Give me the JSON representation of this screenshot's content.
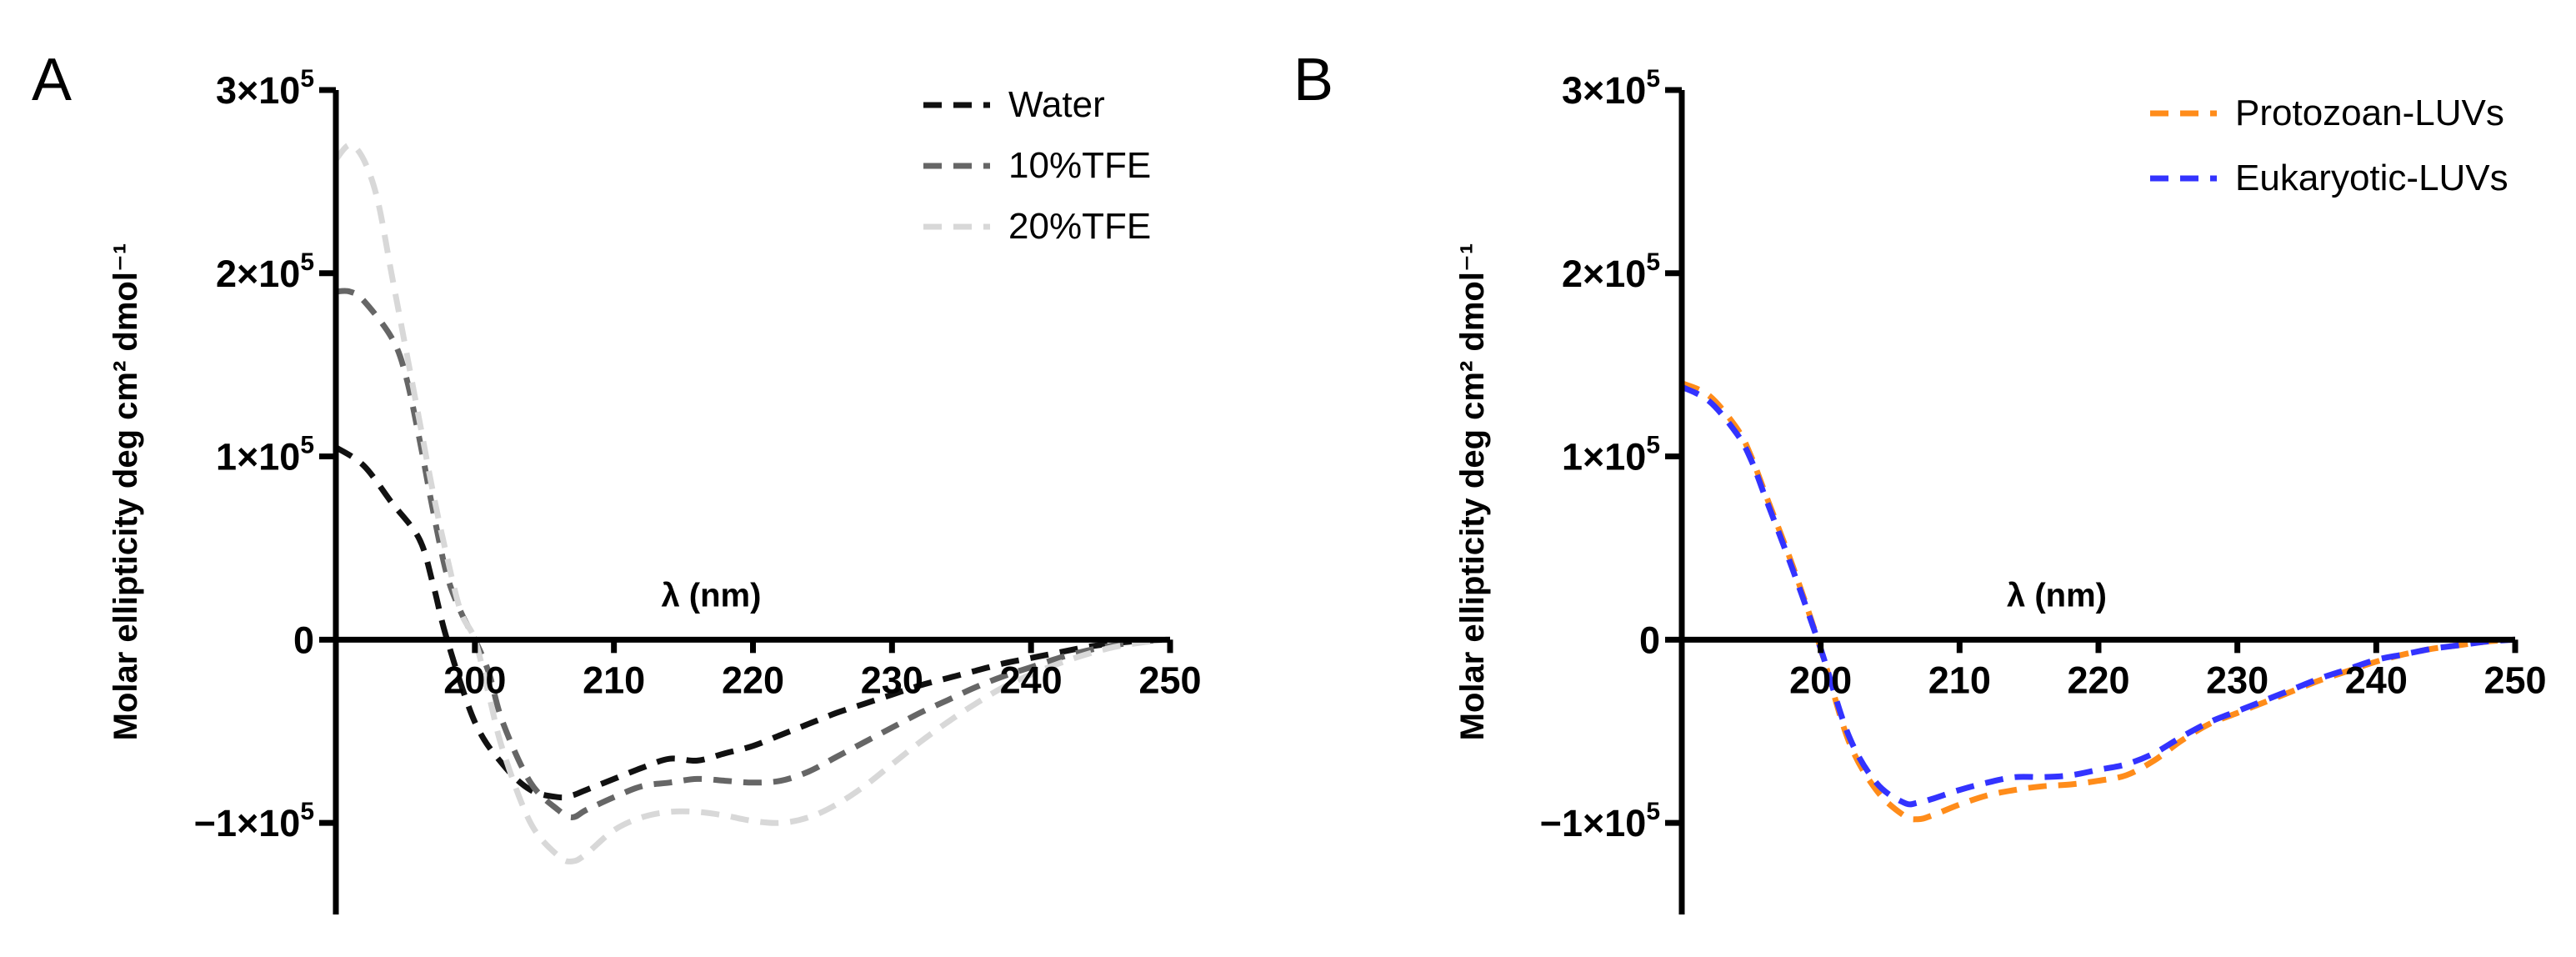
{
  "chart_data": [
    {
      "type": "line",
      "panel_label": "A",
      "title": "",
      "xlabel": "λ (nm)",
      "ylabel": "Molar ellipticity deg cm² dmol⁻¹",
      "xlim": [
        190,
        250
      ],
      "ylim": [
        -150000,
        300000
      ],
      "xticks": [
        200,
        210,
        220,
        230,
        240,
        250
      ],
      "xtick_labels": [
        "200",
        "210",
        "220",
        "230",
        "240",
        "250"
      ],
      "yticks": [
        -100000,
        0,
        100000,
        200000,
        300000
      ],
      "ytick_labels": [
        {
          "base": "−1×10",
          "exp": "5"
        },
        {
          "base": "0",
          "exp": ""
        },
        {
          "base": "1×10",
          "exp": "5"
        },
        {
          "base": "2×10",
          "exp": "5"
        },
        {
          "base": "3×10",
          "exp": "5"
        }
      ],
      "legend_position": "top-right",
      "series": [
        {
          "name": "Water",
          "color": "#111111",
          "x": [
            190,
            192,
            194,
            196,
            197,
            198,
            200,
            202,
            204,
            206,
            207,
            208,
            210,
            212,
            214,
            216,
            218,
            220,
            222,
            224,
            226,
            228,
            230,
            232,
            234,
            236,
            238,
            240,
            242,
            244,
            246,
            248,
            250
          ],
          "y": [
            105000,
            95000,
            75000,
            55000,
            30000,
            0,
            -45000,
            -68000,
            -82000,
            -86000,
            -85000,
            -82000,
            -76000,
            -70000,
            -65000,
            -66000,
            -62000,
            -58000,
            -52000,
            -46000,
            -40000,
            -35000,
            -30000,
            -25000,
            -21000,
            -17000,
            -13000,
            -10000,
            -7000,
            -4000,
            -2000,
            -500,
            0
          ]
        },
        {
          "name": "10%TFE",
          "color": "#666666",
          "x": [
            190,
            191,
            192,
            194,
            195,
            196,
            197,
            198,
            199,
            200,
            201,
            202,
            204,
            206,
            207,
            208,
            210,
            212,
            214,
            216,
            218,
            220,
            222,
            224,
            226,
            228,
            230,
            232,
            234,
            236,
            238,
            240,
            242,
            244,
            246,
            248,
            250
          ],
          "y": [
            190000,
            190000,
            185000,
            165000,
            145000,
            110000,
            70000,
            35000,
            15000,
            0,
            -18000,
            -45000,
            -78000,
            -93000,
            -97000,
            -93000,
            -86000,
            -80000,
            -78000,
            -76000,
            -77000,
            -78000,
            -77000,
            -72000,
            -64000,
            -56000,
            -48000,
            -40000,
            -33000,
            -26000,
            -20000,
            -15000,
            -10000,
            -6000,
            -3000,
            -1000,
            0
          ]
        },
        {
          "name": "20%TFE",
          "color": "#d8d8d8",
          "x": [
            190,
            191,
            192,
            193,
            194,
            195,
            196,
            197,
            198,
            199,
            200,
            201,
            202,
            204,
            206,
            207,
            208,
            210,
            212,
            214,
            216,
            218,
            220,
            222,
            224,
            226,
            228,
            230,
            232,
            234,
            236,
            238,
            240,
            242,
            244,
            246,
            248,
            250
          ],
          "y": [
            262000,
            270000,
            262000,
            240000,
            200000,
            160000,
            120000,
            80000,
            45000,
            15000,
            0,
            -30000,
            -60000,
            -100000,
            -118000,
            -121000,
            -117000,
            -104000,
            -97000,
            -94000,
            -94000,
            -96000,
            -99000,
            -100000,
            -97000,
            -90000,
            -80000,
            -68000,
            -56000,
            -45000,
            -35000,
            -26000,
            -19000,
            -13000,
            -8000,
            -4000,
            -1500,
            0
          ]
        }
      ]
    },
    {
      "type": "line",
      "panel_label": "B",
      "title": "",
      "xlabel": "λ (nm)",
      "ylabel": "Molar ellipticity deg cm² dmol⁻¹",
      "xlim": [
        190,
        250
      ],
      "ylim": [
        -150000,
        300000
      ],
      "xticks": [
        200,
        210,
        220,
        230,
        240,
        250
      ],
      "xtick_labels": [
        "200",
        "210",
        "220",
        "230",
        "240",
        "250"
      ],
      "yticks": [
        -100000,
        0,
        100000,
        200000,
        300000
      ],
      "ytick_labels": [
        {
          "base": "−1×10",
          "exp": "5"
        },
        {
          "base": "0",
          "exp": ""
        },
        {
          "base": "1×10",
          "exp": "5"
        },
        {
          "base": "2×10",
          "exp": "5"
        },
        {
          "base": "3×10",
          "exp": "5"
        }
      ],
      "legend_position": "top-right",
      "series": [
        {
          "name": "Protozoan-LUVs",
          "color": "#ff8c1a",
          "x": [
            190,
            192,
            194,
            195,
            196,
            198,
            200,
            202,
            204,
            206,
            207,
            208,
            210,
            212,
            214,
            216,
            218,
            220,
            222,
            224,
            226,
            228,
            230,
            232,
            234,
            236,
            238,
            240,
            242,
            244,
            246,
            248,
            250
          ],
          "y": [
            140000,
            133000,
            115000,
            100000,
            80000,
            40000,
            -5000,
            -55000,
            -82000,
            -96000,
            -98000,
            -96000,
            -90000,
            -85000,
            -82000,
            -80000,
            -79000,
            -77000,
            -74000,
            -66000,
            -55000,
            -46000,
            -40000,
            -34000,
            -28000,
            -22000,
            -17000,
            -12000,
            -8000,
            -5000,
            -3000,
            -1000,
            0
          ]
        },
        {
          "name": "Eukaryotic-LUVs",
          "color": "#3333ff",
          "x": [
            190,
            192,
            194,
            195,
            196,
            198,
            200,
            202,
            204,
            206,
            207,
            208,
            210,
            212,
            214,
            216,
            218,
            220,
            222,
            224,
            226,
            228,
            230,
            232,
            234,
            236,
            238,
            240,
            242,
            244,
            246,
            248,
            250
          ],
          "y": [
            138000,
            130000,
            112000,
            98000,
            78000,
            38000,
            -5000,
            -52000,
            -78000,
            -89000,
            -89000,
            -87000,
            -82000,
            -78000,
            -75000,
            -75000,
            -74000,
            -71000,
            -68000,
            -62000,
            -53000,
            -45000,
            -39000,
            -33000,
            -27000,
            -21000,
            -16000,
            -11000,
            -8000,
            -5000,
            -3000,
            -1000,
            0
          ]
        }
      ]
    }
  ]
}
